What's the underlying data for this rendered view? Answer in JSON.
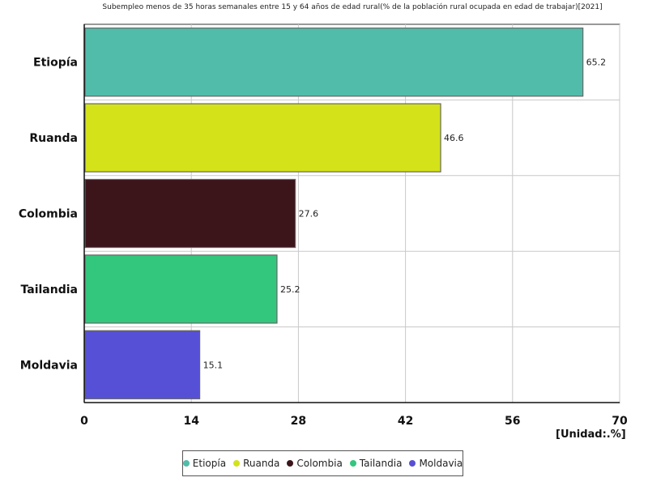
{
  "chart_data": {
    "type": "bar",
    "orientation": "horizontal",
    "title": "Subempleo menos de 35 horas semanales entre 15 y 64 años de edad rural(% de la población rural ocupada en edad de trabajar)[2021]",
    "categories": [
      "Etiopía",
      "Ruanda",
      "Colombia",
      "Tailandia",
      "Moldavia"
    ],
    "values": [
      65.2,
      46.6,
      27.6,
      25.2,
      15.1
    ],
    "colors": [
      "#52bcab",
      "#d4e21a",
      "#3c151b",
      "#33c67d",
      "#5650d6"
    ],
    "xlim": [
      0,
      70
    ],
    "xticks": [
      "0",
      "14",
      "28",
      "42",
      "56",
      "70"
    ],
    "unit_label": "[Unidad:.%]",
    "grid": true,
    "legend_position": "bottom"
  }
}
